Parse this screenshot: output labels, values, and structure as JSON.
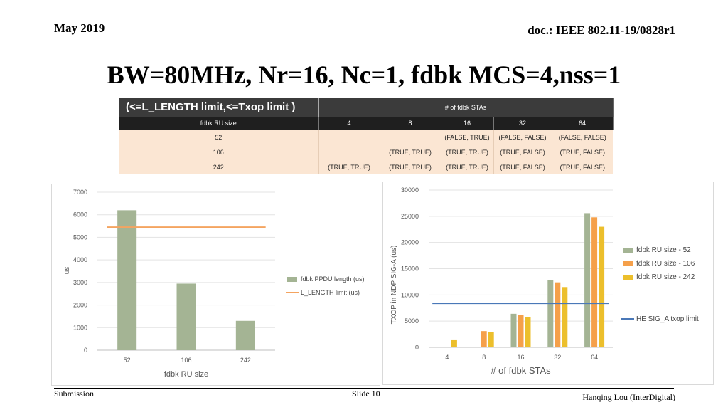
{
  "header": {
    "date": "May 2019",
    "doc": "doc.: IEEE 802.11-19/0828r1"
  },
  "title": "BW=80MHz, Nr=16, Nc=1, fdbk MCS=4,nss=1",
  "table": {
    "corner": "(<=L_LENGTH limit,<=Txop limit )",
    "group_header": "# of fdbk STAs",
    "row_header": "fdbk RU size",
    "columns": [
      "4",
      "8",
      "16",
      "32",
      "64"
    ],
    "rows": [
      {
        "label": "52",
        "cells": [
          "",
          "",
          "(FALSE, TRUE)",
          "(FALSE, FALSE)",
          "(FALSE, FALSE)"
        ]
      },
      {
        "label": "106",
        "cells": [
          "",
          "(TRUE, TRUE)",
          "(TRUE, TRUE)",
          "(TRUE, FALSE)",
          "(TRUE, FALSE)"
        ]
      },
      {
        "label": "242",
        "cells": [
          "(TRUE, TRUE)",
          "(TRUE, TRUE)",
          "(TRUE, TRUE)",
          "(TRUE, FALSE)",
          "(TRUE, FALSE)"
        ]
      }
    ],
    "colors": {
      "true": "#222222",
      "false": "#ee2222",
      "header_bg": "#3b3b3b",
      "row_bg": "#fbe6d3"
    }
  },
  "chart_data": [
    {
      "type": "bar",
      "title": "",
      "xlabel": "fdbk RU size",
      "ylabel": "us",
      "categories": [
        "52",
        "106",
        "242"
      ],
      "ylim": [
        0,
        7000
      ],
      "yticks": [
        "0",
        "1000",
        "2000",
        "3000",
        "4000",
        "5000",
        "6000",
        "7000"
      ],
      "series": [
        {
          "name": "fdbk PPDU length (us)",
          "type": "bar",
          "color": "#a4b494",
          "values": [
            6200,
            2950,
            1300
          ]
        },
        {
          "name": "L_LENGTH limit (us)",
          "type": "line",
          "color": "#f4a460",
          "values": [
            5450,
            5450,
            5450
          ]
        }
      ],
      "legend": "right",
      "grid": true
    },
    {
      "type": "bar",
      "title": "",
      "xlabel": "# of fdbk STAs",
      "ylabel": "TXOP in NDP SIG-A (us)",
      "categories": [
        "4",
        "8",
        "16",
        "32",
        "64"
      ],
      "ylim": [
        0,
        30000
      ],
      "yticks": [
        "0",
        "5000",
        "10000",
        "15000",
        "20000",
        "25000",
        "30000"
      ],
      "series": [
        {
          "name": "fdbk RU size - 52",
          "type": "bar",
          "color": "#a4b494",
          "values": [
            0,
            0,
            6400,
            12800,
            25600
          ]
        },
        {
          "name": "fdbk RU size - 106",
          "type": "bar",
          "color": "#f5a04a",
          "values": [
            0,
            3100,
            6200,
            12400,
            24800
          ]
        },
        {
          "name": "fdbk RU size - 242",
          "type": "bar",
          "color": "#ecbf2c",
          "values": [
            1500,
            2900,
            5800,
            11500,
            23000
          ]
        },
        {
          "name": "HE SIG_A txop limit",
          "type": "line",
          "color": "#4a78b8",
          "values": [
            8400,
            8400,
            8400,
            8400,
            8400
          ]
        }
      ],
      "legend": "right",
      "grid": true
    }
  ],
  "footer": {
    "left": "Submission",
    "center": "Slide 10",
    "right": "Hanqing Lou (InterDigital)"
  }
}
